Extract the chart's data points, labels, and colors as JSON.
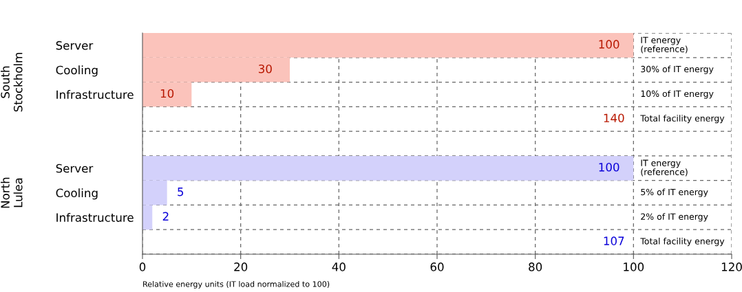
{
  "chart_data": [
    {
      "type": "bar",
      "orientation": "horizontal",
      "ylabel": "South\nStockholm",
      "categories": [
        "Server",
        "Cooling",
        "Infrastructure",
        null
      ],
      "series": [
        {
          "color": "#fbc3bb",
          "values": [
            100,
            30,
            10,
            null
          ]
        }
      ],
      "data_labels": true,
      "annotations": [
        "IT energy\n(reference)",
        "30% of IT energy",
        "10% of IT energy",
        "Total facility energy",
        "140"
      ],
      "xlim": [
        0,
        120
      ],
      "xticks": [
        0,
        20,
        40,
        60,
        80,
        100,
        120
      ],
      "grid": true,
      "tick_labels": "y"
    },
    {
      "type": "bar",
      "orientation": "horizontal",
      "ylabel": "North\nLulea",
      "xlabel": "Relative energy units (IT load normalized to 100)",
      "categories": [
        null,
        "Server",
        "Cooling",
        "Infrastructure",
        null
      ],
      "series": [
        {
          "color": "#d3d1fb",
          "values": [
            null,
            100,
            5,
            2,
            null
          ]
        }
      ],
      "data_labels": true,
      "annotations": [
        "IT energy\n(reference)",
        "5% of IT energy",
        "2% of IT energy",
        "Total facility energy",
        "107"
      ],
      "xlim": [
        0,
        120
      ],
      "xticks": [
        0,
        20,
        40,
        60,
        80,
        100,
        120
      ],
      "grid": true
    }
  ]
}
